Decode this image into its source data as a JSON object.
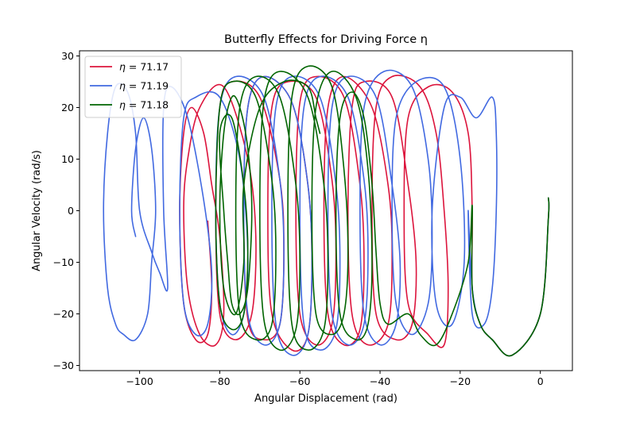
{
  "chart_data": {
    "type": "line",
    "title": "Butterfly Effects for Driving Force η",
    "xlabel": "Angular Displacement (rad)",
    "ylabel": "Angular Velocity (rad/s)",
    "xlim": [
      -115,
      8
    ],
    "ylim": [
      -31,
      31
    ],
    "xticks": [
      -100,
      -80,
      -60,
      -40,
      -20,
      0
    ],
    "yticks": [
      -30,
      -20,
      -10,
      0,
      10,
      20,
      30
    ],
    "x_tick_labels": [
      "−100",
      "−80",
      "−60",
      "−40",
      "−20",
      "0"
    ],
    "y_tick_labels": [
      "−30",
      "−20",
      "−10",
      "0",
      "10",
      "20",
      "30"
    ],
    "grid": false,
    "legend_position": "top-left",
    "series": [
      {
        "name": "71.17",
        "legend_prefix": "η =",
        "color": "#dc143c",
        "points": [
          [
            2,
            2.5
          ],
          [
            2,
            -1.5
          ],
          [
            0,
            -20
          ],
          [
            -7,
            -28
          ],
          [
            -12,
            -25
          ],
          [
            -15,
            -22
          ],
          [
            -17,
            -15
          ],
          [
            -17,
            0
          ],
          [
            -18,
            15
          ],
          [
            -22,
            23
          ],
          [
            -28,
            24
          ],
          [
            -33,
            18
          ],
          [
            -34,
            0
          ],
          [
            -33,
            -18
          ],
          [
            -28,
            -24
          ],
          [
            -24,
            -26
          ],
          [
            -23,
            -15
          ],
          [
            -24,
            0
          ],
          [
            -26,
            15
          ],
          [
            -30,
            24
          ],
          [
            -37,
            26
          ],
          [
            -41,
            20
          ],
          [
            -42,
            0
          ],
          [
            -41,
            -20
          ],
          [
            -36,
            -25
          ],
          [
            -32,
            -22
          ],
          [
            -31,
            -10
          ],
          [
            -33,
            5
          ],
          [
            -37,
            22
          ],
          [
            -44,
            25
          ],
          [
            -47,
            20
          ],
          [
            -48,
            0
          ],
          [
            -47,
            -20
          ],
          [
            -43,
            -26
          ],
          [
            -38,
            -22
          ],
          [
            -37,
            -8
          ],
          [
            -38,
            5
          ],
          [
            -42,
            20
          ],
          [
            -49,
            26
          ],
          [
            -53,
            20
          ],
          [
            -54,
            0
          ],
          [
            -53,
            -20
          ],
          [
            -49,
            -26
          ],
          [
            -45,
            -23
          ],
          [
            -44,
            -10
          ],
          [
            -45,
            5
          ],
          [
            -49,
            22
          ],
          [
            -56,
            26
          ],
          [
            -60,
            21
          ],
          [
            -61,
            0
          ],
          [
            -60,
            -20
          ],
          [
            -56,
            -26
          ],
          [
            -52,
            -22
          ],
          [
            -51,
            -8
          ],
          [
            -52,
            6
          ],
          [
            -56,
            22
          ],
          [
            -63,
            25
          ],
          [
            -67,
            20
          ],
          [
            -68,
            0
          ],
          [
            -67,
            -20
          ],
          [
            -62,
            -27
          ],
          [
            -58,
            -24
          ],
          [
            -57,
            -10
          ],
          [
            -58,
            5
          ],
          [
            -62,
            21
          ],
          [
            -69,
            26
          ],
          [
            -73,
            20
          ],
          [
            -74,
            0
          ],
          [
            -73,
            -21
          ],
          [
            -69,
            -25
          ],
          [
            -65,
            -22
          ],
          [
            -64,
            -8
          ],
          [
            -65,
            6
          ],
          [
            -70,
            22
          ],
          [
            -77,
            25
          ],
          [
            -80,
            20
          ],
          [
            -81,
            0
          ],
          [
            -80,
            -20
          ],
          [
            -76,
            -25
          ],
          [
            -72,
            -20
          ],
          [
            -71,
            -5
          ],
          [
            -73,
            10
          ],
          [
            -79,
            24
          ],
          [
            -85,
            20
          ],
          [
            -88,
            10
          ],
          [
            -89,
            0
          ],
          [
            -88,
            -15
          ],
          [
            -85,
            -24
          ],
          [
            -81,
            -26
          ],
          [
            -79,
            -20
          ],
          [
            -80,
            -5
          ],
          [
            -82,
            5
          ],
          [
            -84,
            15
          ],
          [
            -87,
            20
          ],
          [
            -89,
            15
          ],
          [
            -90,
            0
          ],
          [
            -89,
            -18
          ],
          [
            -86,
            -25
          ],
          [
            -83,
            -24
          ],
          [
            -82,
            -15
          ],
          [
            -83,
            -2
          ]
        ]
      },
      {
        "name": "71.19",
        "legend_prefix": "η =",
        "color": "#4169e1",
        "points": [
          [
            2,
            2.5
          ],
          [
            2,
            -1.5
          ],
          [
            0,
            -20
          ],
          [
            -7,
            -28
          ],
          [
            -12,
            -25
          ],
          [
            -15,
            -22
          ],
          [
            -17,
            -15
          ],
          [
            -18,
            0
          ],
          [
            -17,
            -20
          ],
          [
            -14,
            -22
          ],
          [
            -12,
            -15
          ],
          [
            -11,
            0
          ],
          [
            -11,
            15
          ],
          [
            -12,
            22
          ],
          [
            -16,
            18
          ],
          [
            -20,
            22
          ],
          [
            -24,
            20
          ],
          [
            -27,
            0
          ],
          [
            -26,
            -18
          ],
          [
            -22,
            -22
          ],
          [
            -19,
            -10
          ],
          [
            -20,
            10
          ],
          [
            -24,
            24
          ],
          [
            -31,
            25
          ],
          [
            -36,
            18
          ],
          [
            -37,
            0
          ],
          [
            -36,
            -18
          ],
          [
            -32,
            -24
          ],
          [
            -28,
            -18
          ],
          [
            -27,
            -5
          ],
          [
            -28,
            10
          ],
          [
            -32,
            24
          ],
          [
            -39,
            27
          ],
          [
            -44,
            20
          ],
          [
            -45,
            0
          ],
          [
            -44,
            -20
          ],
          [
            -40,
            -26
          ],
          [
            -36,
            -22
          ],
          [
            -35,
            -10
          ],
          [
            -37,
            5
          ],
          [
            -41,
            22
          ],
          [
            -48,
            26
          ],
          [
            -52,
            20
          ],
          [
            -53,
            0
          ],
          [
            -52,
            -20
          ],
          [
            -48,
            -26
          ],
          [
            -44,
            -22
          ],
          [
            -43,
            -8
          ],
          [
            -44,
            6
          ],
          [
            -48,
            22
          ],
          [
            -55,
            26
          ],
          [
            -59,
            20
          ],
          [
            -60,
            0
          ],
          [
            -59,
            -22
          ],
          [
            -55,
            -27
          ],
          [
            -51,
            -23
          ],
          [
            -50,
            -10
          ],
          [
            -51,
            5
          ],
          [
            -55,
            22
          ],
          [
            -62,
            26
          ],
          [
            -66,
            20
          ],
          [
            -67,
            0
          ],
          [
            -66,
            -22
          ],
          [
            -62,
            -28
          ],
          [
            -58,
            -24
          ],
          [
            -57,
            -10
          ],
          [
            -58,
            5
          ],
          [
            -62,
            21
          ],
          [
            -69,
            26
          ],
          [
            -73,
            20
          ],
          [
            -74,
            0
          ],
          [
            -73,
            -20
          ],
          [
            -69,
            -26
          ],
          [
            -65,
            -22
          ],
          [
            -64,
            -8
          ],
          [
            -65,
            6
          ],
          [
            -69,
            22
          ],
          [
            -76,
            26
          ],
          [
            -80,
            20
          ],
          [
            -81,
            0
          ],
          [
            -80,
            -18
          ],
          [
            -77,
            -24
          ],
          [
            -74,
            -20
          ],
          [
            -73,
            -8
          ],
          [
            -75,
            10
          ],
          [
            -80,
            22
          ],
          [
            -86,
            22
          ],
          [
            -89,
            18
          ],
          [
            -90,
            0
          ],
          [
            -89,
            -18
          ],
          [
            -86,
            -24
          ],
          [
            -83,
            -22
          ],
          [
            -82,
            -12
          ],
          [
            -84,
            2
          ],
          [
            -88,
            18
          ],
          [
            -92,
            24
          ],
          [
            -94,
            20
          ],
          [
            -94,
            0
          ],
          [
            -93,
            -15
          ],
          [
            -95,
            -12
          ],
          [
            -97,
            -8
          ],
          [
            -100,
            0
          ],
          [
            -101,
            15
          ],
          [
            -103,
            23
          ],
          [
            -106,
            24
          ],
          [
            -108,
            15
          ],
          [
            -109,
            0
          ],
          [
            -108,
            -15
          ],
          [
            -106,
            -22
          ],
          [
            -104,
            -24
          ],
          [
            -101,
            -25
          ],
          [
            -98,
            -20
          ],
          [
            -97,
            -10
          ],
          [
            -96,
            0
          ],
          [
            -97,
            12
          ],
          [
            -99,
            18
          ],
          [
            -101,
            12
          ],
          [
            -102,
            0
          ],
          [
            -101,
            -5
          ]
        ]
      },
      {
        "name": "71.18",
        "legend_prefix": "η =",
        "color": "#006400",
        "points": [
          [
            2,
            2.5
          ],
          [
            2,
            -1.5
          ],
          [
            0,
            -20
          ],
          [
            -7,
            -28
          ],
          [
            -12,
            -25
          ],
          [
            -15,
            -22
          ],
          [
            -17,
            -15
          ],
          [
            -17,
            1
          ],
          [
            -18,
            -10
          ],
          [
            -22,
            -20
          ],
          [
            -26,
            -26
          ],
          [
            -30,
            -24
          ],
          [
            -33,
            -20
          ],
          [
            -38,
            -22
          ],
          [
            -40,
            -18
          ],
          [
            -41,
            -8
          ],
          [
            -42,
            5
          ],
          [
            -44,
            18
          ],
          [
            -47,
            23
          ],
          [
            -50,
            18
          ],
          [
            -51,
            0
          ],
          [
            -50,
            -20
          ],
          [
            -46,
            -25
          ],
          [
            -43,
            -22
          ],
          [
            -42,
            -10
          ],
          [
            -43,
            8
          ],
          [
            -46,
            22
          ],
          [
            -52,
            27
          ],
          [
            -56,
            20
          ],
          [
            -57,
            0
          ],
          [
            -56,
            -20
          ],
          [
            -52,
            -24
          ],
          [
            -49,
            -20
          ],
          [
            -48,
            -8
          ],
          [
            -49,
            8
          ],
          [
            -52,
            24
          ],
          [
            -58,
            28
          ],
          [
            -62,
            22
          ],
          [
            -63,
            0
          ],
          [
            -62,
            -22
          ],
          [
            -58,
            -27
          ],
          [
            -54,
            -23
          ],
          [
            -53,
            -10
          ],
          [
            -54,
            5
          ],
          [
            -58,
            22
          ],
          [
            -65,
            27
          ],
          [
            -69,
            21
          ],
          [
            -70,
            0
          ],
          [
            -69,
            -21
          ],
          [
            -65,
            -27
          ],
          [
            -61,
            -23
          ],
          [
            -60,
            -10
          ],
          [
            -61,
            5
          ],
          [
            -65,
            22
          ],
          [
            -71,
            26
          ],
          [
            -75,
            20
          ],
          [
            -76,
            0
          ],
          [
            -75,
            -20
          ],
          [
            -71,
            -25
          ],
          [
            -67,
            -22
          ],
          [
            -66,
            -8
          ],
          [
            -67,
            6
          ],
          [
            -71,
            22
          ],
          [
            -77,
            25
          ],
          [
            -80,
            20
          ],
          [
            -81,
            0
          ],
          [
            -80,
            -18
          ],
          [
            -77,
            -23
          ],
          [
            -74,
            -20
          ],
          [
            -73,
            -8
          ],
          [
            -74,
            5
          ],
          [
            -77,
            18
          ],
          [
            -80,
            15
          ],
          [
            -79,
            0
          ],
          [
            -78,
            -10
          ],
          [
            -77,
            -18
          ],
          [
            -75,
            -20
          ],
          [
            -73,
            -15
          ],
          [
            -72,
            0
          ],
          [
            -73,
            12
          ],
          [
            -75,
            20
          ],
          [
            -77,
            22
          ],
          [
            -79,
            15
          ],
          [
            -80,
            0
          ],
          [
            -79,
            -15
          ],
          [
            -76,
            -20
          ],
          [
            -74,
            -10
          ],
          [
            -74,
            5
          ],
          [
            -70,
            20
          ],
          [
            -64,
            25
          ],
          [
            -58,
            24
          ],
          [
            -56,
            18
          ],
          [
            -55,
            15
          ]
        ]
      }
    ]
  }
}
